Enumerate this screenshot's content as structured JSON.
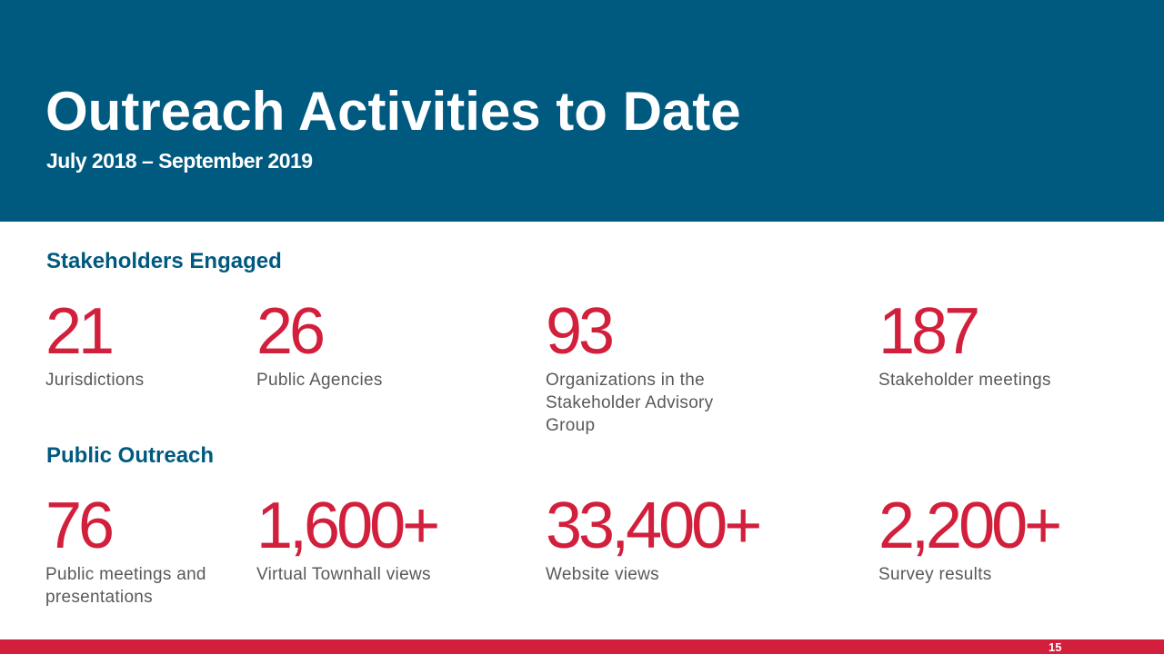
{
  "header": {
    "title": "Outreach Activities to Date",
    "subtitle": "July 2018 – September 2019"
  },
  "sections": [
    {
      "heading": "Stakeholders Engaged",
      "stats": [
        {
          "value": "21",
          "label": "Jurisdictions"
        },
        {
          "value": "26",
          "label": "Public Agencies"
        },
        {
          "value": "93",
          "label": "Organizations in the Stakeholder Advisory Group"
        },
        {
          "value": "187",
          "label": "Stakeholder meetings"
        }
      ]
    },
    {
      "heading": "Public Outreach",
      "stats": [
        {
          "value": "76",
          "label": "Public meetings and presentations"
        },
        {
          "value": "1,600+",
          "label": "Virtual Townhall views"
        },
        {
          "value": "33,400+",
          "label": "Website views"
        },
        {
          "value": "2,200+",
          "label": "Survey results"
        }
      ]
    }
  ],
  "footer": {
    "page_number": "15"
  },
  "colors": {
    "header_background": "#005a7f",
    "accent_red": "#d21f3c",
    "heading_blue": "#005a7f",
    "label_gray": "#595959"
  }
}
